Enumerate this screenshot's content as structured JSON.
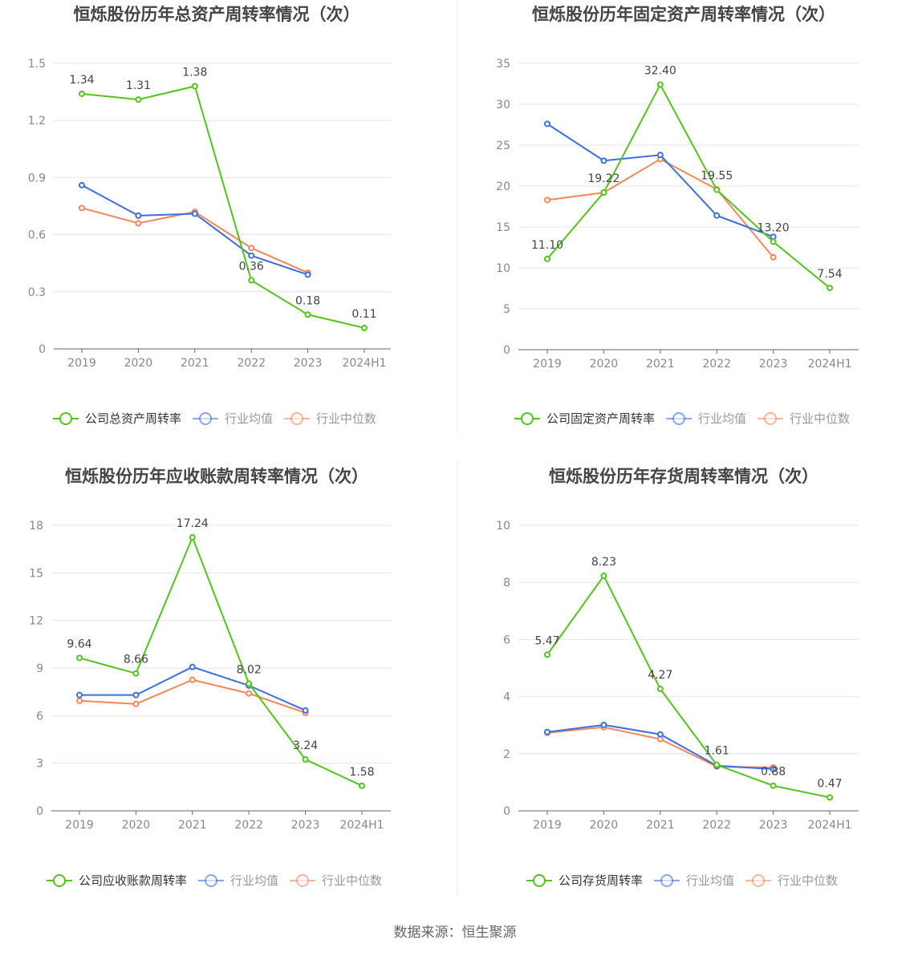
{
  "source": "数据来源：恒生聚源",
  "colors": {
    "company": "#52c41a",
    "average": "#3b6fe0",
    "median": "#f5875a",
    "grid": "#e3e6f0",
    "axis": "#666666"
  },
  "chart_data": [
    {
      "type": "line",
      "title": "恒烁股份历年总资产周转率情况（次）",
      "categories": [
        "2019",
        "2020",
        "2021",
        "2022",
        "2023",
        "2024H1"
      ],
      "ylim": [
        0,
        1.5
      ],
      "yticks": [
        "0",
        "0.3",
        "0.6",
        "0.9",
        "1.2",
        "1.5"
      ],
      "grid": true,
      "legend": "bottom",
      "series": [
        {
          "name": "公司总资产周转率",
          "values": [
            1.34,
            1.31,
            1.38,
            0.36,
            0.18,
            0.11
          ],
          "labels": [
            "1.34",
            "1.31",
            "1.38",
            "0.36",
            "0.18",
            "0.11"
          ]
        },
        {
          "name": "行业均值",
          "values": [
            0.86,
            0.7,
            0.71,
            0.49,
            0.39,
            null
          ]
        },
        {
          "name": "行业中位数",
          "values": [
            0.74,
            0.66,
            0.72,
            0.53,
            0.4,
            null
          ]
        }
      ]
    },
    {
      "type": "line",
      "title": "恒烁股份历年固定资产周转率情况（次）",
      "categories": [
        "2019",
        "2020",
        "2021",
        "2022",
        "2023",
        "2024H1"
      ],
      "ylim": [
        0,
        35
      ],
      "yticks": [
        "0",
        "5",
        "10",
        "15",
        "20",
        "25",
        "30",
        "35"
      ],
      "grid": true,
      "legend": "bottom",
      "series": [
        {
          "name": "公司固定资产周转率",
          "values": [
            11.1,
            19.22,
            32.4,
            19.55,
            13.2,
            7.54
          ],
          "labels": [
            "11.10",
            "19.22",
            "32.40",
            "19.55",
            "13.20",
            "7.54"
          ]
        },
        {
          "name": "行业均值",
          "values": [
            27.6,
            23.1,
            23.8,
            16.4,
            13.8,
            null
          ]
        },
        {
          "name": "行业中位数",
          "values": [
            18.3,
            19.2,
            23.3,
            19.6,
            11.3,
            null
          ]
        }
      ]
    },
    {
      "type": "line",
      "title": "恒烁股份历年应收账款周转率情况（次）",
      "categories": [
        "2019",
        "2020",
        "2021",
        "2022",
        "2023",
        "2024H1"
      ],
      "ylim": [
        0,
        18
      ],
      "yticks": [
        "0",
        "3",
        "6",
        "9",
        "12",
        "15",
        "18"
      ],
      "grid": true,
      "legend": "bottom",
      "series": [
        {
          "name": "公司应收账款周转率",
          "values": [
            9.64,
            8.66,
            17.24,
            8.02,
            3.24,
            1.58
          ],
          "labels": [
            "9.64",
            "8.66",
            "17.24",
            "8.02",
            "3.24",
            "1.58"
          ]
        },
        {
          "name": "行业均值",
          "values": [
            7.3,
            7.3,
            9.07,
            7.9,
            6.33,
            null
          ]
        },
        {
          "name": "行业中位数",
          "values": [
            6.94,
            6.74,
            8.26,
            7.4,
            6.18,
            null
          ]
        }
      ]
    },
    {
      "type": "line",
      "title": "恒烁股份历年存货周转率情况（次）",
      "categories": [
        "2019",
        "2020",
        "2021",
        "2022",
        "2023",
        "2024H1"
      ],
      "ylim": [
        0,
        10
      ],
      "yticks": [
        "0",
        "2",
        "4",
        "6",
        "8",
        "10"
      ],
      "grid": true,
      "legend": "bottom",
      "series": [
        {
          "name": "公司存货周转率",
          "values": [
            5.47,
            8.23,
            4.27,
            1.61,
            0.88,
            0.47
          ],
          "labels": [
            "5.47",
            "8.23",
            "4.27",
            "1.61",
            "0.88",
            "0.47"
          ]
        },
        {
          "name": "行业均值",
          "values": [
            2.76,
            3.01,
            2.68,
            1.58,
            1.46,
            null
          ]
        },
        {
          "name": "行业中位数",
          "values": [
            2.73,
            2.93,
            2.51,
            1.55,
            1.52,
            null
          ]
        }
      ]
    }
  ]
}
